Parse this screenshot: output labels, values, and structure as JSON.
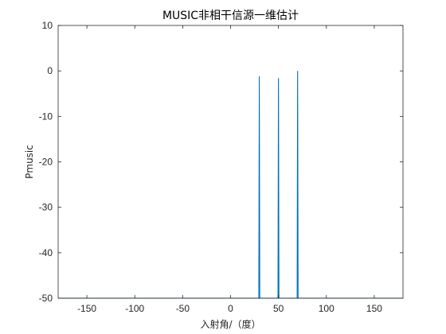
{
  "chart_data": {
    "type": "line",
    "title": "MUSIC非相干信源一维估计",
    "xlabel": "入射角/（度）",
    "ylabel": "Pmusic",
    "xlim": [
      -180,
      180
    ],
    "ylim": [
      -50,
      10
    ],
    "xticks": [
      -150,
      -100,
      -50,
      0,
      50,
      100,
      150
    ],
    "yticks": [
      10,
      0,
      -10,
      -20,
      -30,
      -40,
      -50
    ],
    "xtick_labels": [
      "-150",
      "-100",
      "-50",
      "0",
      "50",
      "100",
      "150"
    ],
    "ytick_labels": [
      "10",
      "0",
      "-10",
      "-20",
      "-30",
      "-40",
      "-50"
    ],
    "grid": false,
    "series": [
      {
        "color": "#0072BD",
        "x": [
          -180,
          29.5,
          30,
          30.5,
          49.5,
          50,
          50.5,
          69.5,
          70,
          70.5,
          180
        ],
        "y": [
          -50,
          -50,
          -1.2,
          -50,
          -50,
          -1.6,
          -50,
          -50,
          0,
          -50,
          -50
        ]
      }
    ]
  }
}
